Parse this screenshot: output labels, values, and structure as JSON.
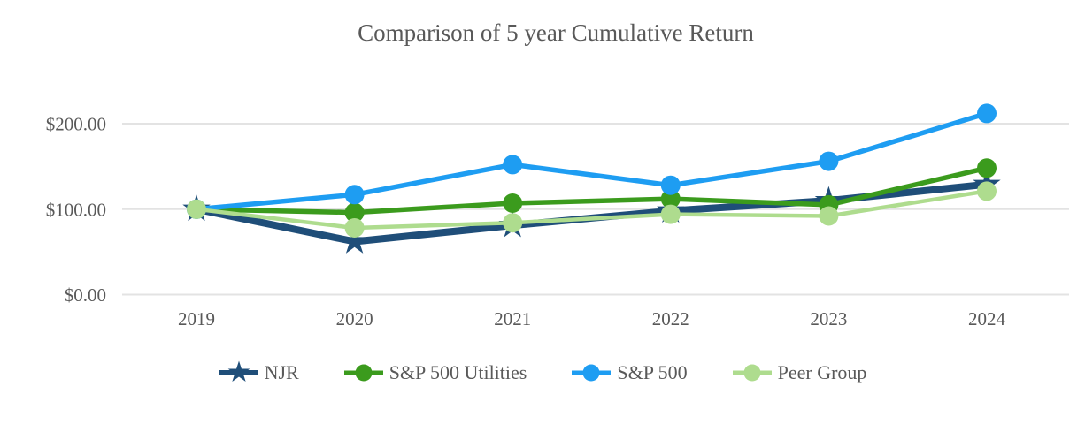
{
  "chart_data": {
    "type": "line",
    "title": "Comparison of 5 year Cumulative Return",
    "x_categories": [
      "2019",
      "2020",
      "2021",
      "2022",
      "2023",
      "2024"
    ],
    "y_axis": {
      "ticks": [
        {
          "value": 0,
          "label": "$0.00"
        },
        {
          "value": 100,
          "label": "$100.00"
        },
        {
          "value": 200,
          "label": "$200.00"
        }
      ],
      "range": [
        0,
        250
      ]
    },
    "grid": true,
    "legend_position": "bottom",
    "text_color": "#595959",
    "gridline_color": "#E3E3E3",
    "series": [
      {
        "name": "NJR",
        "marker": "star",
        "color": "#1F4E79",
        "line_width": 8,
        "values": [
          100,
          62,
          81,
          98,
          110,
          129
        ]
      },
      {
        "name": "S&P 500 Utilities",
        "marker": "circle",
        "color": "#3B9B1D",
        "line_width": 5.5,
        "values": [
          100,
          96,
          107,
          112,
          105,
          148
        ]
      },
      {
        "name": "S&P 500",
        "marker": "circle",
        "color": "#1E9DF2",
        "line_width": 5.5,
        "values": [
          100,
          117,
          152,
          128,
          156,
          212
        ]
      },
      {
        "name": "Peer Group",
        "marker": "circle",
        "color": "#AEDC8E",
        "line_width": 4.5,
        "values": [
          100,
          78,
          84,
          94,
          92,
          121
        ]
      }
    ]
  }
}
